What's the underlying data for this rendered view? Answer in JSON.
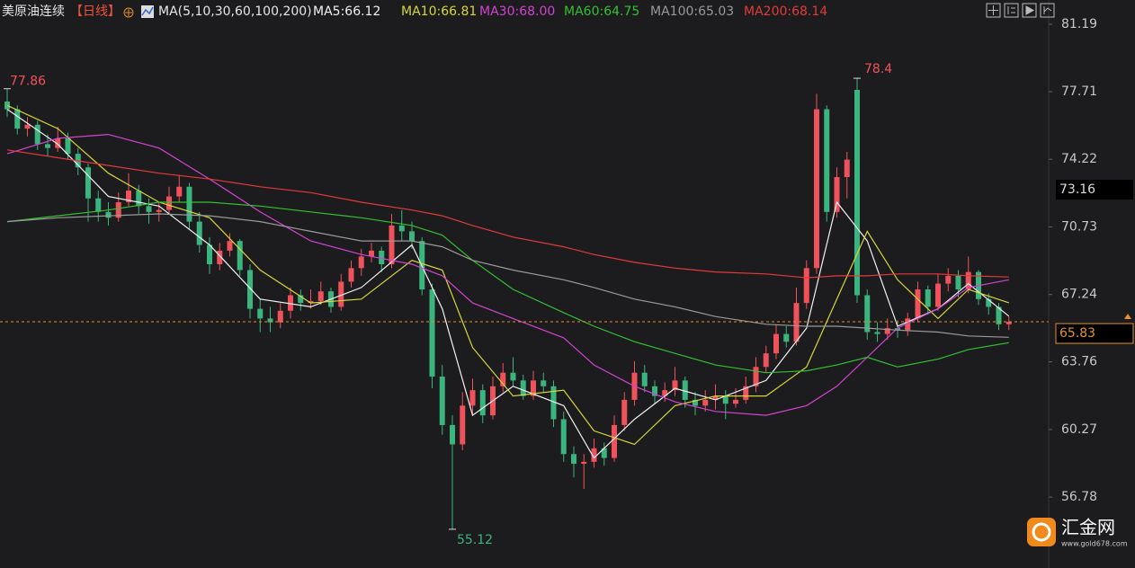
{
  "chart_data": {
    "type": "candlestick",
    "title": "美原油连续",
    "period": "【日线】",
    "indicator": "MA(5,10,30,60,100,200)",
    "ylim": [
      53.12,
      82.44
    ],
    "yticks": [
      81.19,
      77.71,
      74.22,
      70.73,
      67.24,
      63.76,
      60.27,
      56.78
    ],
    "up_color": "#f0525c",
    "down_color": "#3bb57f",
    "candles": {
      "open": [
        77.2,
        76.8,
        75.8,
        76.0,
        75.0,
        74.8,
        75.3,
        74.5,
        73.8,
        72.2,
        71.5,
        71.2,
        72.0,
        72.6,
        71.8,
        71.5,
        71.6,
        72.3,
        72.8,
        71.0,
        69.8,
        68.8,
        69.5,
        70.0,
        68.5,
        66.5,
        66.0,
        65.8,
        66.4,
        67.2,
        66.8,
        66.9,
        67.4,
        66.6,
        67.9,
        68.6,
        69.2,
        69.5,
        68.8,
        70.8,
        70.5,
        70.0,
        67.5,
        63.0,
        60.5,
        59.5,
        61.5,
        62.3,
        61.0,
        62.5,
        63.2,
        62.8,
        62.0,
        62.8,
        62.5,
        60.8,
        59.0,
        58.5,
        58.6,
        59.3,
        58.8,
        60.5,
        61.8,
        63.2,
        62.5,
        62.0,
        62.3,
        62.8,
        61.8,
        61.5,
        61.8,
        62.0,
        61.6,
        61.8,
        62.5,
        63.5,
        64.2,
        65.2,
        64.8,
        66.8,
        68.6,
        76.8,
        71.5,
        73.3,
        77.8,
        67.2,
        65.3,
        65.2,
        65.5,
        65.4,
        66.0,
        67.5,
        66.6,
        67.8,
        68.2,
        67.5,
        68.4,
        67.0,
        66.6,
        65.7
      ],
      "high": [
        77.86,
        77.0,
        76.4,
        76.2,
        75.5,
        75.9,
        75.6,
        74.8,
        74.0,
        72.6,
        72.0,
        72.5,
        73.5,
        72.9,
        72.2,
        72.0,
        72.8,
        73.4,
        73.0,
        71.5,
        70.2,
        69.9,
        70.4,
        70.1,
        68.8,
        67.0,
        66.6,
        66.8,
        67.6,
        67.5,
        67.5,
        67.9,
        67.6,
        68.3,
        69.0,
        69.6,
        69.9,
        69.7,
        71.4,
        71.6,
        71.0,
        70.2,
        67.8,
        63.6,
        61.0,
        62.2,
        62.9,
        62.6,
        63.0,
        63.7,
        64.0,
        63.1,
        63.3,
        63.2,
        62.8,
        61.2,
        59.4,
        59.0,
        59.8,
        59.6,
        61.0,
        62.2,
        63.8,
        63.6,
        62.8,
        62.7,
        63.5,
        63.0,
        62.2,
        62.3,
        62.6,
        62.3,
        62.4,
        63.0,
        64.0,
        64.6,
        65.7,
        65.6,
        67.6,
        69.0,
        77.6,
        77.0,
        73.8,
        74.6,
        78.4,
        67.5,
        65.8,
        66.0,
        65.9,
        66.3,
        67.9,
        67.7,
        68.3,
        68.6,
        68.5,
        69.2,
        68.5,
        67.3,
        66.8,
        66.1
      ],
      "low": [
        76.4,
        75.5,
        75.4,
        74.7,
        74.4,
        74.6,
        74.2,
        73.4,
        71.0,
        71.0,
        70.8,
        71.0,
        71.8,
        71.4,
        70.9,
        71.0,
        71.4,
        72.0,
        70.6,
        69.4,
        68.3,
        68.5,
        69.2,
        68.2,
        66.0,
        65.3,
        65.3,
        65.5,
        66.0,
        66.4,
        66.5,
        66.7,
        66.3,
        66.4,
        67.6,
        68.2,
        68.9,
        68.4,
        68.6,
        70.0,
        69.6,
        67.2,
        62.4,
        60.0,
        55.12,
        59.2,
        61.0,
        60.6,
        60.8,
        62.2,
        62.5,
        61.8,
        61.8,
        62.2,
        60.4,
        58.6,
        57.8,
        57.2,
        58.3,
        58.4,
        58.6,
        60.2,
        61.5,
        62.2,
        61.6,
        61.7,
        62.0,
        61.4,
        61.0,
        61.2,
        61.3,
        60.8,
        61.4,
        61.6,
        62.2,
        63.2,
        63.9,
        64.5,
        64.6,
        66.5,
        68.3,
        71.0,
        71.2,
        72.2,
        66.8,
        64.9,
        64.8,
        64.9,
        65.0,
        65.1,
        65.8,
        66.2,
        66.4,
        67.4,
        67.1,
        67.3,
        66.7,
        66.2,
        65.4,
        65.4
      ],
      "close": [
        76.8,
        75.8,
        76.0,
        75.0,
        74.8,
        75.3,
        74.5,
        73.8,
        72.2,
        71.5,
        71.2,
        72.0,
        72.6,
        71.8,
        71.5,
        71.6,
        72.3,
        72.8,
        71.0,
        69.8,
        68.8,
        69.5,
        70.0,
        68.5,
        66.5,
        66.0,
        65.8,
        66.4,
        67.2,
        66.8,
        66.9,
        67.4,
        66.6,
        67.9,
        68.6,
        69.2,
        69.5,
        68.8,
        70.8,
        70.5,
        70.0,
        67.5,
        63.0,
        60.5,
        59.5,
        61.5,
        62.3,
        61.0,
        62.5,
        63.2,
        62.8,
        62.0,
        62.8,
        62.5,
        60.8,
        59.0,
        58.5,
        58.6,
        59.3,
        58.8,
        60.5,
        61.8,
        63.2,
        62.5,
        62.0,
        62.3,
        62.8,
        61.8,
        61.5,
        61.8,
        62.0,
        61.6,
        61.8,
        62.5,
        63.5,
        64.2,
        65.2,
        64.8,
        66.8,
        68.6,
        76.8,
        71.5,
        73.3,
        74.2,
        67.2,
        65.3,
        65.2,
        65.5,
        65.4,
        66.0,
        67.5,
        66.6,
        67.8,
        68.2,
        67.5,
        68.4,
        67.0,
        66.6,
        65.7,
        65.83
      ]
    },
    "series": [
      {
        "label": "MA5:66.12",
        "color": "#f2f2f2",
        "x": [
          0,
          5,
          10,
          15,
          20,
          25,
          30,
          35,
          40,
          43,
          46,
          50,
          55,
          58,
          62,
          66,
          70,
          75,
          79,
          82,
          85,
          88,
          92,
          95,
          99
        ],
        "values": [
          76.8,
          75.0,
          72.3,
          71.8,
          69.8,
          67.0,
          66.6,
          67.6,
          69.8,
          66.5,
          61.0,
          62.5,
          61.5,
          58.8,
          60.8,
          62.4,
          61.8,
          62.8,
          65.5,
          72.0,
          70.0,
          65.6,
          66.5,
          67.8,
          66.12
        ]
      },
      {
        "label": "MA10:66.81",
        "color": "#d6d63a",
        "x": [
          0,
          5,
          10,
          15,
          20,
          25,
          30,
          35,
          40,
          43,
          46,
          50,
          55,
          58,
          62,
          66,
          70,
          75,
          79,
          82,
          85,
          88,
          92,
          95,
          99
        ],
        "values": [
          77.0,
          75.8,
          73.5,
          72.0,
          71.2,
          68.5,
          66.8,
          67.0,
          69.0,
          68.5,
          64.5,
          62.0,
          62.3,
          60.2,
          59.5,
          61.5,
          62.0,
          62.0,
          63.5,
          67.0,
          70.5,
          68.0,
          66.0,
          67.5,
          66.81
        ]
      },
      {
        "label": "MA30:68.00",
        "color": "#d044d0",
        "x": [
          0,
          5,
          10,
          15,
          20,
          25,
          30,
          35,
          40,
          43,
          46,
          50,
          55,
          58,
          62,
          66,
          70,
          75,
          79,
          82,
          85,
          88,
          92,
          95,
          99
        ],
        "values": [
          74.5,
          75.3,
          75.5,
          74.8,
          73.2,
          71.5,
          70.0,
          69.3,
          68.8,
          68.2,
          66.8,
          66.0,
          65.0,
          63.6,
          62.5,
          61.7,
          61.2,
          61.0,
          61.5,
          62.5,
          64.0,
          65.5,
          66.5,
          67.6,
          68.0
        ]
      },
      {
        "label": "MA60:64.75",
        "color": "#33c033",
        "x": [
          0,
          5,
          10,
          15,
          20,
          25,
          30,
          35,
          40,
          43,
          46,
          50,
          55,
          58,
          62,
          66,
          70,
          75,
          79,
          82,
          85,
          88,
          92,
          95,
          99
        ],
        "values": [
          71.0,
          71.3,
          71.6,
          72.0,
          72.0,
          71.8,
          71.5,
          71.2,
          70.8,
          70.3,
          69.0,
          67.5,
          66.3,
          65.6,
          64.8,
          64.2,
          63.6,
          63.2,
          63.3,
          63.6,
          64.0,
          63.5,
          63.9,
          64.4,
          64.75
        ]
      },
      {
        "label": "MA100:65.03",
        "color": "#9a9a9a",
        "x": [
          0,
          5,
          10,
          15,
          20,
          25,
          30,
          35,
          40,
          43,
          46,
          50,
          55,
          58,
          62,
          66,
          70,
          75,
          79,
          82,
          85,
          88,
          92,
          95,
          99
        ],
        "values": [
          71.0,
          71.2,
          71.3,
          71.4,
          71.3,
          71.0,
          70.5,
          70.0,
          70.0,
          69.7,
          69.0,
          68.5,
          68.0,
          67.6,
          67.0,
          66.6,
          66.1,
          65.7,
          65.6,
          65.6,
          65.5,
          65.4,
          65.3,
          65.1,
          65.03
        ]
      },
      {
        "label": "MA200:68.14",
        "color": "#e33a3a",
        "x": [
          0,
          5,
          10,
          15,
          20,
          25,
          30,
          35,
          40,
          43,
          46,
          50,
          55,
          58,
          62,
          66,
          70,
          75,
          79,
          82,
          85,
          88,
          92,
          95,
          99
        ],
        "values": [
          74.7,
          74.3,
          73.9,
          73.5,
          73.2,
          72.8,
          72.5,
          72.0,
          71.6,
          71.3,
          70.8,
          70.2,
          69.7,
          69.3,
          68.9,
          68.6,
          68.4,
          68.3,
          68.1,
          68.2,
          68.2,
          68.3,
          68.3,
          68.2,
          68.14
        ]
      }
    ],
    "last_price": 65.83,
    "last_price_color": "#e8902a",
    "cursor_price": 73.16,
    "watermark": {
      "name": "汇金网",
      "url": "www.gold678.com"
    }
  }
}
